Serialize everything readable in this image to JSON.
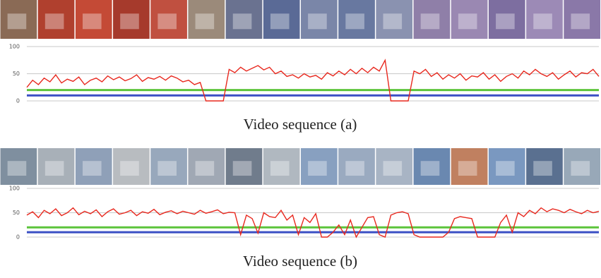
{
  "chart_data": [
    {
      "type": "line",
      "caption": "Video sequence (a)",
      "ylim": [
        0,
        100
      ],
      "yticks": [
        0,
        50,
        100
      ],
      "grid": true,
      "series": [
        {
          "color": "#e8281e",
          "values": [
            25,
            38,
            30,
            42,
            35,
            48,
            33,
            40,
            36,
            44,
            30,
            38,
            42,
            35,
            46,
            39,
            44,
            37,
            41,
            48,
            36,
            43,
            40,
            45,
            38,
            46,
            42,
            35,
            38,
            30,
            34,
            0,
            0,
            0,
            0,
            58,
            52,
            62,
            55,
            60,
            65,
            57,
            62,
            50,
            55,
            45,
            48,
            42,
            50,
            44,
            47,
            40,
            52,
            46,
            55,
            48,
            58,
            50,
            60,
            52,
            62,
            55,
            75,
            0,
            0,
            0,
            0,
            55,
            50,
            58,
            45,
            52,
            40,
            48,
            42,
            50,
            38,
            46,
            44,
            52,
            40,
            48,
            36,
            45,
            50,
            42,
            55,
            48,
            58,
            50,
            45,
            52,
            40,
            48,
            55,
            44,
            52,
            50,
            58,
            45
          ]
        },
        {
          "color": "#5cc43a",
          "values": [
            20,
            20
          ]
        },
        {
          "color": "#3a4fc4",
          "values": [
            10,
            10
          ]
        }
      ]
    },
    {
      "type": "line",
      "caption": "Video sequence (b)",
      "ylim": [
        0,
        100
      ],
      "yticks": [
        0,
        50,
        100
      ],
      "grid": true,
      "series": [
        {
          "color": "#e8281e",
          "values": [
            45,
            52,
            40,
            55,
            48,
            58,
            44,
            50,
            60,
            46,
            53,
            48,
            56,
            42,
            52,
            58,
            47,
            50,
            55,
            44,
            52,
            49,
            57,
            46,
            51,
            54,
            48,
            53,
            50,
            47,
            55,
            49,
            52,
            56,
            48,
            51,
            50,
            5,
            45,
            38,
            8,
            50,
            42,
            40,
            55,
            35,
            45,
            5,
            40,
            30,
            48,
            0,
            0,
            10,
            25,
            5,
            35,
            0,
            20,
            40,
            42,
            5,
            0,
            45,
            50,
            52,
            48,
            5,
            0,
            0,
            0,
            0,
            0,
            10,
            38,
            42,
            40,
            38,
            0,
            0,
            0,
            0,
            30,
            45,
            10,
            50,
            42,
            55,
            48,
            60,
            52,
            58,
            55,
            50,
            57,
            52,
            48,
            55,
            50,
            53
          ]
        },
        {
          "color": "#5cc43a",
          "values": [
            20,
            20
          ]
        },
        {
          "color": "#3a4fc4",
          "values": [
            10,
            10
          ]
        }
      ]
    }
  ]
}
